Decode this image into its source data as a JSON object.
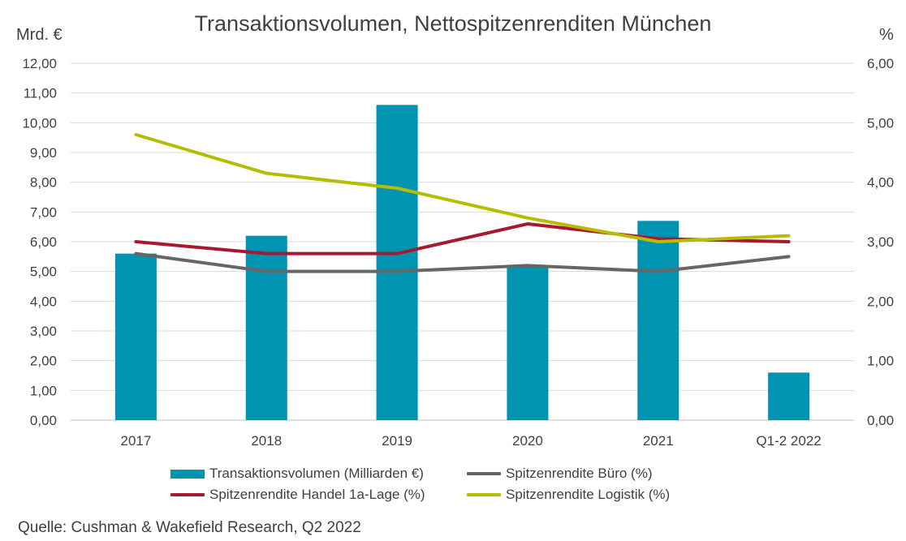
{
  "chart_data": {
    "type": "bar+line",
    "title": "Transaktionsvolumen, Nettospitzenrenditen München",
    "left_axis_unit": "Mrd. €",
    "right_axis_unit": "%",
    "categories": [
      "2017",
      "2018",
      "2019",
      "2020",
      "2021",
      "Q1-2 2022"
    ],
    "left_axis": {
      "min": 0,
      "max": 12,
      "step": 1,
      "tick_labels": [
        "0,00",
        "1,00",
        "2,00",
        "3,00",
        "4,00",
        "5,00",
        "6,00",
        "7,00",
        "8,00",
        "9,00",
        "10,00",
        "11,00",
        "12,00"
      ]
    },
    "right_axis": {
      "min": 0,
      "max": 6,
      "step": 1,
      "tick_labels": [
        "0,00",
        "1,00",
        "2,00",
        "3,00",
        "4,00",
        "5,00",
        "6,00"
      ]
    },
    "series": [
      {
        "name": "Transaktionsvolumen (Milliarden €)",
        "kind": "bar",
        "axis": "left",
        "color": "#0093b2",
        "values": [
          5.6,
          6.2,
          10.6,
          5.2,
          6.7,
          1.6
        ]
      },
      {
        "name": "Spitzenrendite Büro (%)",
        "kind": "line",
        "axis": "right",
        "color": "#666666",
        "values": [
          2.8,
          2.5,
          2.5,
          2.6,
          2.5,
          2.75
        ]
      },
      {
        "name": "Spitzenrendite Handel 1a-Lage (%)",
        "kind": "line",
        "axis": "right",
        "color": "#a6192e",
        "values": [
          3.0,
          2.8,
          2.8,
          3.3,
          3.05,
          3.0
        ]
      },
      {
        "name": "Spitzenrendite Logistik  (%)",
        "kind": "line",
        "axis": "right",
        "color": "#b5bd00",
        "values": [
          4.8,
          4.15,
          3.9,
          3.4,
          3.0,
          3.1
        ]
      }
    ],
    "grid": "horizontal",
    "legend_position": "bottom",
    "source": "Quelle: Cushman & Wakefield Research, Q2 2022"
  }
}
